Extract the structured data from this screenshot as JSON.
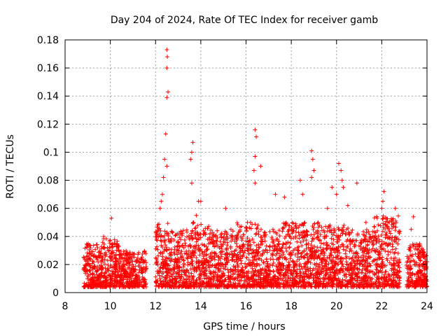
{
  "chart_data": {
    "type": "scatter",
    "title": "Day 204 of 2024, Rate Of TEC Index for receiver gamb",
    "xlabel": "GPS time / hours",
    "ylabel": "ROTI / TECUs",
    "xlim": [
      8,
      24
    ],
    "ylim": [
      0,
      0.18
    ],
    "xticks": [
      8,
      10,
      12,
      14,
      16,
      18,
      20,
      22,
      24
    ],
    "xtick_labels": [
      "8",
      "10",
      "12",
      "14",
      "16",
      "18",
      "20",
      "22",
      "24"
    ],
    "yticks": [
      0,
      0.02,
      0.04,
      0.06,
      0.08,
      0.1,
      0.12,
      0.14,
      0.16,
      0.18
    ],
    "ytick_labels": [
      "0",
      "0.02",
      "0.04",
      "0.06",
      "0.08",
      "0.1",
      "0.12",
      "0.14",
      "0.16",
      "0.18"
    ],
    "grid": true,
    "marker": "+",
    "color": "#ff0000",
    "series": [
      {
        "name": "ROTI",
        "bands": [
          {
            "x": [
              8.8,
              9.6
            ],
            "ymin": 0.004,
            "ymax": 0.035
          },
          {
            "x": [
              9.6,
              10.4
            ],
            "ymin": 0.004,
            "ymax": 0.04
          },
          {
            "x": [
              10.4,
              11.6
            ],
            "ymin": 0.004,
            "ymax": 0.03
          },
          {
            "x": [
              12.0,
              12.6
            ],
            "ymin": 0.004,
            "ymax": 0.05
          },
          {
            "x": [
              12.6,
              13.6
            ],
            "ymin": 0.004,
            "ymax": 0.045
          },
          {
            "x": [
              13.6,
              14.4
            ],
            "ymin": 0.004,
            "ymax": 0.05
          },
          {
            "x": [
              14.4,
              15.6
            ],
            "ymin": 0.004,
            "ymax": 0.045
          },
          {
            "x": [
              15.6,
              16.6
            ],
            "ymin": 0.004,
            "ymax": 0.05
          },
          {
            "x": [
              16.6,
              17.6
            ],
            "ymin": 0.004,
            "ymax": 0.045
          },
          {
            "x": [
              17.6,
              19.2
            ],
            "ymin": 0.004,
            "ymax": 0.05
          },
          {
            "x": [
              19.2,
              20.6
            ],
            "ymin": 0.004,
            "ymax": 0.048
          },
          {
            "x": [
              20.6,
              21.6
            ],
            "ymin": 0.004,
            "ymax": 0.045
          },
          {
            "x": [
              21.6,
              22.8
            ],
            "ymin": 0.004,
            "ymax": 0.055
          },
          {
            "x": [
              23.1,
              24.0
            ],
            "ymin": 0.004,
            "ymax": 0.035
          }
        ],
        "peaks": [
          {
            "x": 12.5,
            "y": 0.173
          },
          {
            "x": 12.52,
            "y": 0.168
          },
          {
            "x": 12.5,
            "y": 0.16
          },
          {
            "x": 12.55,
            "y": 0.143
          },
          {
            "x": 12.5,
            "y": 0.139
          },
          {
            "x": 12.45,
            "y": 0.113
          },
          {
            "x": 12.4,
            "y": 0.095
          },
          {
            "x": 12.5,
            "y": 0.09
          },
          {
            "x": 12.35,
            "y": 0.082
          },
          {
            "x": 12.25,
            "y": 0.065
          },
          {
            "x": 12.2,
            "y": 0.06
          },
          {
            "x": 12.3,
            "y": 0.07
          },
          {
            "x": 13.65,
            "y": 0.107
          },
          {
            "x": 13.6,
            "y": 0.1
          },
          {
            "x": 13.55,
            "y": 0.095
          },
          {
            "x": 13.6,
            "y": 0.078
          },
          {
            "x": 13.9,
            "y": 0.065
          },
          {
            "x": 13.8,
            "y": 0.055
          },
          {
            "x": 16.4,
            "y": 0.116
          },
          {
            "x": 16.45,
            "y": 0.111
          },
          {
            "x": 16.4,
            "y": 0.097
          },
          {
            "x": 16.35,
            "y": 0.087
          },
          {
            "x": 16.65,
            "y": 0.09
          },
          {
            "x": 16.4,
            "y": 0.078
          },
          {
            "x": 18.9,
            "y": 0.101
          },
          {
            "x": 18.95,
            "y": 0.095
          },
          {
            "x": 19.0,
            "y": 0.087
          },
          {
            "x": 18.9,
            "y": 0.082
          },
          {
            "x": 18.4,
            "y": 0.08
          },
          {
            "x": 18.5,
            "y": 0.07
          },
          {
            "x": 20.1,
            "y": 0.092
          },
          {
            "x": 20.2,
            "y": 0.087
          },
          {
            "x": 20.25,
            "y": 0.08
          },
          {
            "x": 20.3,
            "y": 0.075
          },
          {
            "x": 20.0,
            "y": 0.07
          },
          {
            "x": 19.8,
            "y": 0.075
          },
          {
            "x": 20.9,
            "y": 0.078
          },
          {
            "x": 20.5,
            "y": 0.062
          },
          {
            "x": 22.1,
            "y": 0.072
          },
          {
            "x": 22.05,
            "y": 0.065
          },
          {
            "x": 22.0,
            "y": 0.06
          },
          {
            "x": 22.6,
            "y": 0.06
          },
          {
            "x": 17.3,
            "y": 0.07
          },
          {
            "x": 17.7,
            "y": 0.068
          },
          {
            "x": 15.1,
            "y": 0.06
          },
          {
            "x": 14.0,
            "y": 0.065
          },
          {
            "x": 10.05,
            "y": 0.053
          },
          {
            "x": 23.4,
            "y": 0.054
          },
          {
            "x": 23.3,
            "y": 0.045
          },
          {
            "x": 19.6,
            "y": 0.06
          },
          {
            "x": 21.3,
            "y": 0.05
          }
        ]
      }
    ]
  }
}
